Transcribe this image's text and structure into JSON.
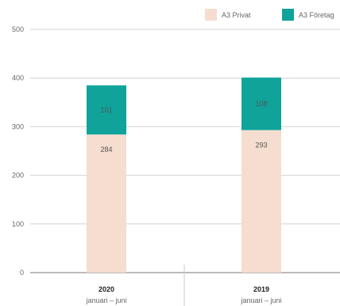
{
  "legend": {
    "items": [
      {
        "label": "A3 Privat",
        "color": "#F5DDD0"
      },
      {
        "label": "A3 Företag",
        "color": "#0FA39A"
      }
    ]
  },
  "chart_data": {
    "type": "bar",
    "stacked": true,
    "categories": [
      "2020",
      "2019"
    ],
    "subcategory_labels": [
      "januari – juni",
      "januari – juni"
    ],
    "series": [
      {
        "name": "A3 Privat",
        "color": "#F5DDD0",
        "values": [
          284,
          293
        ]
      },
      {
        "name": "A3 Företag",
        "color": "#0FA39A",
        "values": [
          101,
          108
        ]
      }
    ],
    "yticks": [
      0,
      100,
      200,
      300,
      400,
      500
    ],
    "ylim": [
      0,
      500
    ],
    "grid": true,
    "legend_position": "top-right"
  }
}
